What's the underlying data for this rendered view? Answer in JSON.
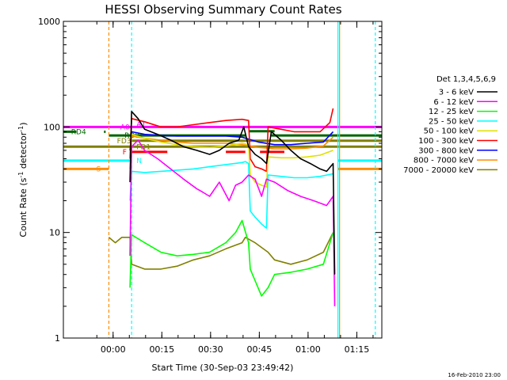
{
  "chart_data": {
    "type": "line",
    "title": "HESSI Observing Summary Count Rates",
    "xlabel": "Start Time (30-Sep-03 23:49:42)",
    "ylabel_main": "Count Rate (s",
    "ylabel_sup1": "-1",
    "ylabel_mid": " detector",
    "ylabel_sup2": "-1",
    "ylabel_end": ")",
    "y_scale": "log",
    "ylim": [
      1,
      1000
    ],
    "y_ticks": [
      {
        "v": 1,
        "label": "1"
      },
      {
        "v": 10,
        "label": "10"
      },
      {
        "v": 100,
        "label": "100"
      },
      {
        "v": 1000,
        "label": "1000"
      }
    ],
    "x_unit": "minutes after 23:49:42",
    "xlim": [
      -15,
      83
    ],
    "x_ticks": [
      {
        "v": 0.3,
        "label": "00:00"
      },
      {
        "v": 15.3,
        "label": "00:15"
      },
      {
        "v": 30.3,
        "label": "00:30"
      },
      {
        "v": 45.3,
        "label": "00:45"
      },
      {
        "v": 60.3,
        "label": "01:00"
      },
      {
        "v": 75.3,
        "label": "01:15"
      }
    ],
    "legend_title": "Det 1,3,4,5,6,9",
    "legend_placement": "right",
    "series": [
      {
        "name": "3 - 6 keV",
        "color": "#000000",
        "x": [
          5.5,
          6,
          8,
          10,
          14,
          18,
          22,
          26,
          30,
          33,
          36,
          39,
          40.5,
          42,
          44,
          46,
          47.5,
          49,
          52,
          55,
          58,
          61,
          64,
          66,
          68,
          68.5
        ],
        "y": [
          30,
          140,
          120,
          95,
          85,
          75,
          65,
          60,
          55,
          60,
          70,
          75,
          100,
          65,
          55,
          50,
          45,
          90,
          75,
          60,
          50,
          45,
          40,
          38,
          45,
          4
        ]
      },
      {
        "name": "6 - 12 keV",
        "color": "#ff00ff",
        "x": [
          5.5,
          6,
          8,
          10,
          14,
          18,
          22,
          26,
          28,
          30,
          33,
          36,
          38,
          40,
          42,
          44,
          46,
          47.5,
          50,
          54,
          58,
          62,
          66,
          68,
          68.5
        ],
        "y": [
          6,
          65,
          75,
          60,
          50,
          40,
          32,
          26,
          24,
          22,
          30,
          20,
          28,
          30,
          35,
          32,
          22,
          32,
          30,
          25,
          22,
          20,
          18,
          22,
          2
        ]
      },
      {
        "name": "12 - 25 keV",
        "color": "#00ff00",
        "x": [
          5.5,
          6,
          10,
          15,
          20,
          25,
          30,
          35,
          38,
          40,
          42,
          42.5,
          44,
          46,
          48,
          50,
          55,
          60,
          65,
          68
        ],
        "y": [
          3,
          9.5,
          8,
          6.5,
          6,
          6.2,
          6.5,
          8,
          10,
          13,
          8,
          4.5,
          3.5,
          2.5,
          3,
          4,
          4.2,
          4.5,
          5,
          10
        ]
      },
      {
        "name": "25 - 50 keV",
        "color": "#00ffff",
        "x": [
          5.5,
          6,
          10,
          15,
          20,
          25,
          30,
          35,
          40,
          41,
          42,
          42.5,
          44,
          46,
          47.5,
          48,
          52,
          56,
          60,
          64,
          68
        ],
        "y": [
          20,
          38,
          37,
          38,
          39,
          40,
          42,
          44,
          46,
          47,
          45,
          16,
          14,
          12,
          11,
          35,
          34,
          33,
          33,
          34,
          36
        ]
      },
      {
        "name": "50 - 100 keV",
        "color": "#e0e000",
        "x": [
          5.5,
          6,
          10,
          15,
          20,
          25,
          30,
          35,
          40,
          42,
          42.5,
          44,
          46,
          47.5,
          48,
          52,
          56,
          60,
          64,
          68
        ],
        "y": [
          40,
          85,
          78,
          72,
          68,
          65,
          64,
          66,
          70,
          68,
          35,
          30,
          28,
          27,
          52,
          51,
          51,
          52,
          54,
          60
        ]
      },
      {
        "name": "100 - 300 keV",
        "color": "#ff0000",
        "x": [
          5.5,
          6,
          10,
          15,
          20,
          25,
          30,
          35,
          40,
          42,
          42.5,
          44,
          46,
          47.5,
          48,
          52,
          56,
          60,
          64,
          67,
          68
        ],
        "y": [
          50,
          120,
          112,
          100,
          100,
          105,
          110,
          115,
          118,
          115,
          50,
          42,
          40,
          38,
          100,
          95,
          90,
          90,
          90,
          110,
          150
        ]
      },
      {
        "name": "300 - 800 keV",
        "color": "#0000ff",
        "x": [
          5.5,
          6,
          10,
          15,
          20,
          25,
          30,
          35,
          40,
          45,
          50,
          55,
          60,
          65,
          68
        ],
        "y": [
          60,
          90,
          85,
          83,
          82,
          82,
          82,
          82,
          80,
          72,
          68,
          68,
          70,
          72,
          90
        ]
      },
      {
        "name": "800 - 7000 keV",
        "color": "#ff8c00",
        "x": [
          5.5,
          6,
          10,
          15,
          20,
          25,
          30,
          35,
          40,
          45,
          50,
          55,
          60,
          65,
          68
        ],
        "y": [
          60,
          82,
          78,
          75,
          72,
          70,
          70,
          70,
          68,
          64,
          62,
          62,
          63,
          66,
          80
        ]
      },
      {
        "name": "7000 - 20000 keV",
        "color": "#808000",
        "x": [
          -1,
          1,
          3,
          5.5,
          6,
          10,
          15,
          20,
          25,
          30,
          35,
          40,
          41,
          44,
          48,
          50,
          55,
          60,
          65,
          68
        ],
        "y": [
          9,
          8,
          9,
          9,
          5,
          4.5,
          4.5,
          4.8,
          5.5,
          6,
          7,
          8,
          9,
          8,
          6.5,
          5.5,
          5,
          5.5,
          6.5,
          10
        ]
      }
    ],
    "flag_bars": [
      {
        "label": "S",
        "label_color": "#ff8c00",
        "color": "#ff8c00",
        "y": 40,
        "segments": [
          [
            -15,
            -1
          ],
          [
            69.5,
            83
          ]
        ]
      },
      {
        "label": "N",
        "label_color": "#00ffff",
        "color": "#00ffff",
        "y": 48,
        "segments": [
          [
            -15,
            6
          ],
          [
            69.5,
            83
          ]
        ]
      },
      {
        "label": "F",
        "label_color": "#ff0000",
        "color": "#ff0000",
        "y": 58,
        "segments": [
          [
            6,
            17
          ],
          [
            35,
            41
          ],
          [
            45.5,
            53
          ]
        ]
      },
      {
        "label": "FD1",
        "label_color": "#808000",
        "color": "#808000",
        "y": 65,
        "segments": [
          [
            -15,
            83
          ]
        ]
      },
      {
        "label": "FD3",
        "label_color": "#808000",
        "color": "#808000",
        "y": 74,
        "segments": [
          [
            6,
            83
          ]
        ]
      },
      {
        "label": "RD4",
        "label_color": "#006400",
        "color": "#006400",
        "y": 90,
        "segments": [
          [
            -15,
            -11
          ],
          [
            -2.5,
            -2
          ]
        ]
      },
      {
        "label": "RD0",
        "label_color": "#006400",
        "color": "#006400",
        "y": 83,
        "segments": [
          [
            -1,
            41
          ],
          [
            49,
            83
          ]
        ]
      },
      {
        "label": "",
        "label_color": "#006400",
        "color": "#006400",
        "y": 91,
        "segments": [
          [
            42,
            50
          ]
        ]
      },
      {
        "label": "A0",
        "label_color": "#ff00ff",
        "color": "#ff00ff",
        "y": 100,
        "segments": [
          [
            -15,
            83
          ]
        ]
      },
      {
        "label": "A1",
        "label_color": "#ff00ff",
        "color": "#ff00ff",
        "y": 106,
        "segments": []
      }
    ],
    "vlines": [
      {
        "x": -1,
        "color": "#ff8c00",
        "dashed": true
      },
      {
        "x": 6,
        "color": "#00ffff",
        "dashed": true
      },
      {
        "x": 69.5,
        "color": "#00ffff",
        "dashed": false
      },
      {
        "x": 70,
        "color": "#ff8c00",
        "dashed": false
      },
      {
        "x": 81,
        "color": "#00ffff",
        "dashed": true
      }
    ],
    "footer": "16-Feb-2010 23:00"
  }
}
